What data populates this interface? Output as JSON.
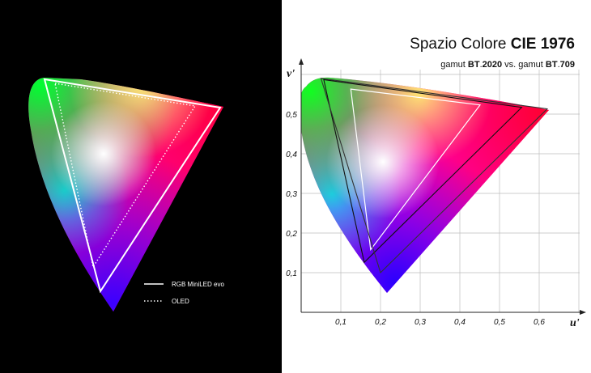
{
  "left": {
    "legend": [
      {
        "label": "RGB MiniLED evo",
        "style": "solid"
      },
      {
        "label": "OLED",
        "style": "dotted"
      }
    ]
  },
  "right": {
    "title_prefix": "Spazio Colore ",
    "title_bold": "CIE 1976",
    "subtitle_1": "gamut ",
    "subtitle_2": "BT",
    "subtitle_3": ".",
    "subtitle_4": "2020",
    "subtitle_5": " vs. gamut ",
    "subtitle_6": "BT",
    "subtitle_7": ".",
    "subtitle_8": "709"
  },
  "chart_data": {
    "type": "scatter",
    "title": "Spazio Colore CIE 1976",
    "subtitle": "gamut BT.2020 vs. gamut BT.709",
    "xlabel": "u'",
    "ylabel": "v'",
    "xlim": [
      0,
      0.7
    ],
    "ylim": [
      0,
      0.6
    ],
    "x_ticks": [
      "0,1",
      "0,2",
      "0,3",
      "0,4",
      "0,5",
      "0,6"
    ],
    "y_ticks": [
      "0,1",
      "0,2",
      "0,3",
      "0,4",
      "0,5"
    ],
    "grid": true,
    "gamuts": [
      {
        "role": "BT.2020",
        "points": [
          [
            0.556,
            0.517
          ],
          [
            0.057,
            0.587
          ],
          [
            0.159,
            0.126
          ]
        ]
      },
      {
        "role": "BT.709",
        "points": [
          [
            0.451,
            0.523
          ],
          [
            0.125,
            0.563
          ],
          [
            0.175,
            0.158
          ]
        ]
      },
      {
        "role": "outer",
        "points": [
          [
            0.62,
            0.513
          ],
          [
            0.05,
            0.59
          ],
          [
            0.2,
            0.1
          ]
        ]
      }
    ]
  }
}
